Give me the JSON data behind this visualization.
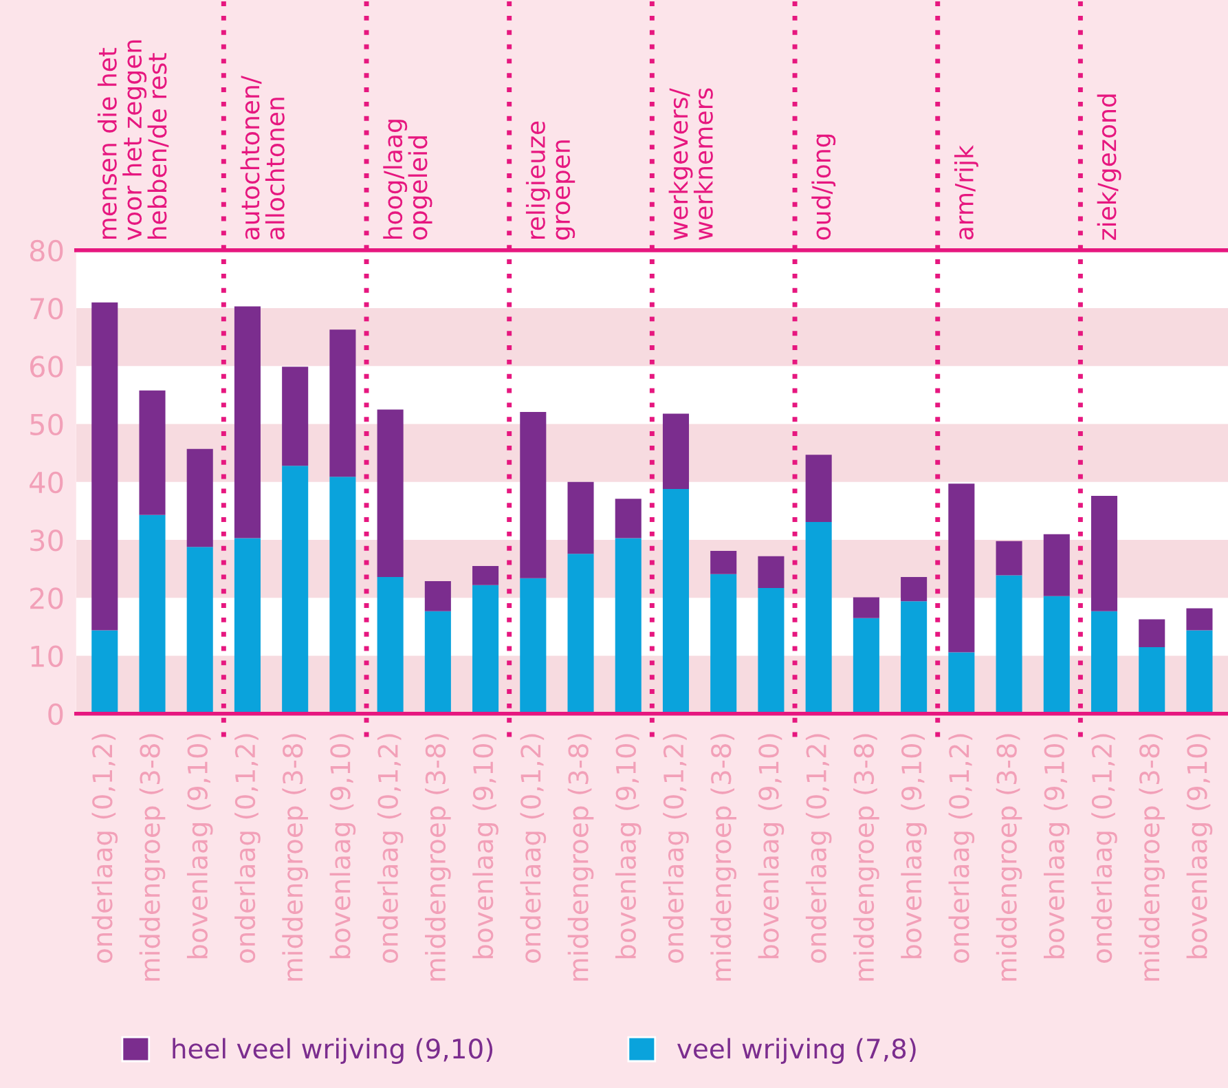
{
  "chart_data": {
    "type": "bar",
    "stacked": true,
    "categories": [
      "onderlaag (0,1,2)",
      "middengroep (3-8)",
      "bovenlaag (9,10)",
      "onderlaag (0,1,2)",
      "middengroep (3-8)",
      "bovenlaag (9,10)",
      "onderlaag (0,1,2)",
      "middengroep (3-8)",
      "bovenlaag (9,10)",
      "onderlaag (0,1,2)",
      "middengroep (3-8)",
      "bovenlaag (9,10)",
      "onderlaag (0,1,2)",
      "middengroep (3-8)",
      "bovenlaag (9,10)",
      "onderlaag (0,1,2)",
      "middengroep (3-8)",
      "bovenlaag (9,10)",
      "onderlaag (0,1,2)",
      "middengroep (3-8)",
      "bovenlaag (9,10)",
      "onderlaag (0,1,2)",
      "middengroep (3-8)",
      "bovenlaag (9,10)"
    ],
    "series": [
      {
        "name": "veel wrijving (7,8)",
        "color": "#0aa3dc",
        "values": [
          14.4,
          34.3,
          28.8,
          30.3,
          42.8,
          40.9,
          23.6,
          17.7,
          22.2,
          23.4,
          27.6,
          30.3,
          38.8,
          24.1,
          21.7,
          33.1,
          16.5,
          19.4,
          10.6,
          23.9,
          20.3,
          17.7,
          11.5,
          14.4
        ]
      },
      {
        "name": "heel veel wrijving (9,10)",
        "color": "#7b2d8e",
        "values": [
          56.6,
          21.5,
          16.9,
          40.0,
          17.1,
          25.4,
          28.9,
          5.2,
          3.3,
          28.7,
          12.4,
          6.8,
          13.0,
          4.0,
          5.5,
          11.6,
          3.6,
          4.2,
          29.1,
          5.9,
          10.7,
          19.9,
          4.8,
          3.8
        ]
      }
    ],
    "ylim": [
      0,
      80
    ],
    "yticks": [
      0,
      10,
      20,
      30,
      40,
      50,
      60,
      70,
      80
    ],
    "bands": [
      {
        "axis": "y",
        "from": 0,
        "to": 10,
        "color": "#f7dbe0"
      },
      {
        "axis": "y",
        "from": 20,
        "to": 30,
        "color": "#f7dbe0"
      },
      {
        "axis": "y",
        "from": 40,
        "to": 50,
        "color": "#f7dbe0"
      },
      {
        "axis": "y",
        "from": 60,
        "to": 70,
        "color": "#f7dbe0"
      }
    ],
    "annotations": [
      "mensen die het\nvoor het zeggen\nhebben/de rest",
      "autochtonen/\nallochtonen",
      "hoog/laag\nopgeleid",
      "religieuze\ngroepen",
      "werkgevers/\nwerknemers",
      "oud/jong",
      "arm/rijk",
      "ziek/gezond"
    ],
    "legend": "bottom"
  }
}
